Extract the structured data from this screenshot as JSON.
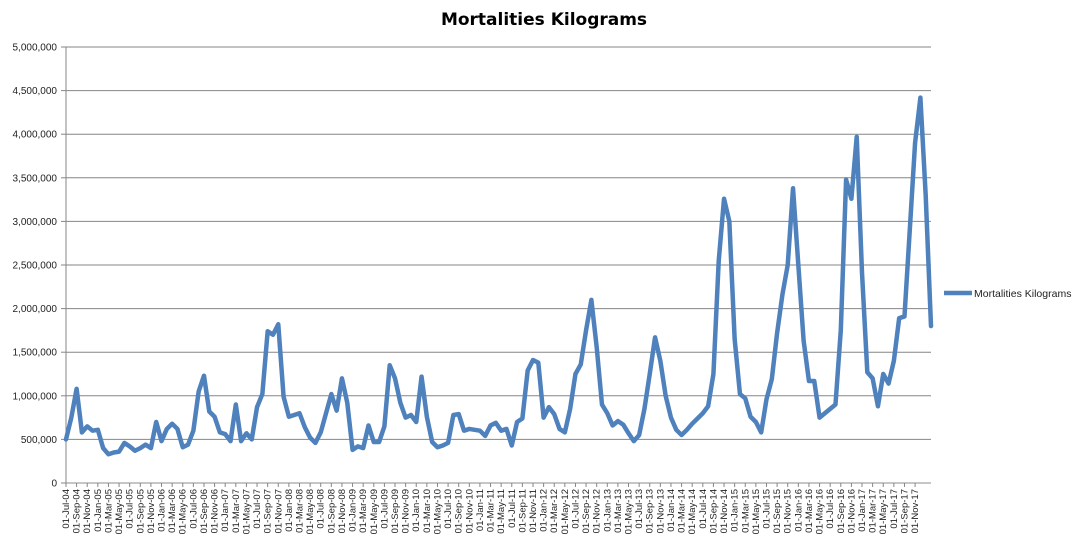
{
  "chart_data": {
    "type": "line",
    "title": "Mortalities Kilograms",
    "xlabel": "",
    "ylabel": "",
    "ylim": [
      0,
      5000000
    ],
    "yticks": [
      0,
      500000,
      1000000,
      1500000,
      2000000,
      2500000,
      3000000,
      3500000,
      4000000,
      4500000,
      5000000
    ],
    "ytick_labels": [
      "0",
      "500,000",
      "1,000,000",
      "1,500,000",
      "2,000,000",
      "2,500,000",
      "3,000,000",
      "3,500,000",
      "4,000,000",
      "4,500,000",
      "5,000,000"
    ],
    "grid": true,
    "legend": "right",
    "series_color": "#4F81BD",
    "x_start": "2004-07",
    "x_end": "2017-12",
    "xtick_labels": [
      "01-Jul-04",
      "01-Sep-04",
      "01-Nov-04",
      "01-Jan-05",
      "01-Mar-05",
      "01-May-05",
      "01-Jul-05",
      "01-Sep-05",
      "01-Nov-05",
      "01-Jan-06",
      "01-Mar-06",
      "01-May-06",
      "01-Jul-06",
      "01-Sep-06",
      "01-Nov-06",
      "01-Jan-07",
      "01-Mar-07",
      "01-May-07",
      "01-Jul-07",
      "01-Sep-07",
      "01-Nov-07",
      "01-Jan-08",
      "01-Mar-08",
      "01-May-08",
      "01-Jul-08",
      "01-Sep-08",
      "01-Nov-08",
      "01-Jan-09",
      "01-Mar-09",
      "01-May-09",
      "01-Jul-09",
      "01-Sep-09",
      "01-Nov-09",
      "01-Jan-10",
      "01-Mar-10",
      "01-May-10",
      "01-Jul-10",
      "01-Sep-10",
      "01-Nov-10",
      "01-Jan-11",
      "01-Mar-11",
      "01-May-11",
      "01-Jul-11",
      "01-Sep-11",
      "01-Nov-11",
      "01-Jan-12",
      "01-Mar-12",
      "01-May-12",
      "01-Jul-12",
      "01-Sep-12",
      "01-Nov-12",
      "01-Jan-13",
      "01-Mar-13",
      "01-May-13",
      "01-Jul-13",
      "01-Sep-13",
      "01-Nov-13",
      "01-Jan-14",
      "01-Mar-14",
      "01-May-14",
      "01-Jul-14",
      "01-Sep-14",
      "01-Nov-14",
      "01-Jan-15",
      "01-Mar-15",
      "01-May-15",
      "01-Jul-15",
      "01-Sep-15",
      "01-Nov-15",
      "01-Jan-16",
      "01-Mar-16",
      "01-May-16",
      "01-Jul-16",
      "01-Sep-16",
      "01-Nov-16",
      "01-Jan-17",
      "01-Mar-17",
      "01-May-17",
      "01-Jul-17",
      "01-Sep-17",
      "01-Nov-17"
    ],
    "series": [
      {
        "name": "Mortalities Kilograms",
        "values": [
          500000,
          750000,
          1080000,
          580000,
          650000,
          600000,
          610000,
          400000,
          330000,
          350000,
          360000,
          460000,
          420000,
          370000,
          400000,
          440000,
          400000,
          700000,
          480000,
          620000,
          680000,
          620000,
          410000,
          440000,
          600000,
          1050000,
          1230000,
          820000,
          760000,
          580000,
          560000,
          480000,
          900000,
          480000,
          570000,
          500000,
          870000,
          1020000,
          1740000,
          1700000,
          1820000,
          990000,
          760000,
          780000,
          800000,
          640000,
          520000,
          460000,
          580000,
          800000,
          1020000,
          830000,
          1200000,
          920000,
          380000,
          420000,
          400000,
          660000,
          470000,
          470000,
          650000,
          1350000,
          1200000,
          920000,
          750000,
          780000,
          700000,
          1220000,
          760000,
          470000,
          410000,
          430000,
          460000,
          780000,
          790000,
          600000,
          620000,
          610000,
          600000,
          540000,
          660000,
          690000,
          600000,
          620000,
          430000,
          700000,
          740000,
          1290000,
          1410000,
          1380000,
          750000,
          870000,
          790000,
          620000,
          580000,
          850000,
          1250000,
          1360000,
          1750000,
          2100000,
          1560000,
          900000,
          800000,
          660000,
          710000,
          670000,
          570000,
          480000,
          550000,
          850000,
          1250000,
          1670000,
          1400000,
          1000000,
          750000,
          610000,
          550000,
          610000,
          680000,
          740000,
          800000,
          880000,
          1250000,
          2550000,
          3260000,
          3000000,
          1650000,
          1020000,
          970000,
          760000,
          700000,
          580000,
          960000,
          1190000,
          1720000,
          2160000,
          2500000,
          3380000,
          2500000,
          1630000,
          1170000,
          1170000,
          750000,
          800000,
          850000,
          900000,
          1750000,
          3480000,
          3260000,
          3970000,
          2410000,
          1270000,
          1200000,
          880000,
          1250000,
          1140000,
          1400000,
          1890000,
          1910000,
          2900000,
          3900000,
          4420000,
          3300000,
          1800000
        ]
      }
    ]
  }
}
